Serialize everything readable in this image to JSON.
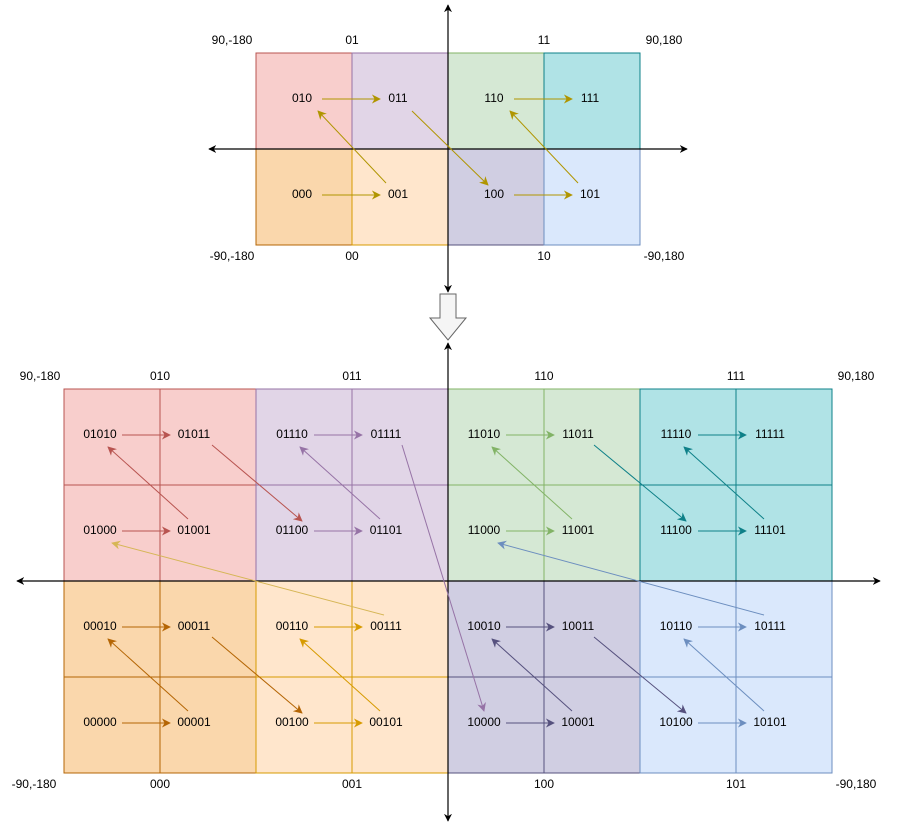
{
  "colors": {
    "red": {
      "fill": "#f8cecc",
      "stroke": "#b85450",
      "arrow": "#b85450"
    },
    "purple": {
      "fill": "#e1d5e7",
      "stroke": "#9673a6",
      "arrow": "#9673a6"
    },
    "green": {
      "fill": "#d5e8d4",
      "stroke": "#82b366",
      "arrow": "#82b366"
    },
    "teal": {
      "fill": "#b0e3e6",
      "stroke": "#0e8088",
      "arrow": "#0e8088"
    },
    "orange": {
      "fill": "#fad7ac",
      "stroke": "#b46504",
      "arrow": "#b46504"
    },
    "peach": {
      "fill": "#ffe6cc",
      "stroke": "#d79b00",
      "arrow": "#d79b00"
    },
    "slate": {
      "fill": "#d0cee2",
      "stroke": "#56517e",
      "arrow": "#56517e"
    },
    "blue": {
      "fill": "#dae8fc",
      "stroke": "#6c8ebf",
      "arrow": "#6c8ebf"
    },
    "gold": "#b09500",
    "crossArrow": "#d6b656"
  },
  "top": {
    "corners": {
      "tl": "90,-180",
      "tr": "90,180",
      "bl": "-90,-180",
      "br": "-90,180"
    },
    "columnLabelsTop": [
      "01",
      "11"
    ],
    "columnLabelsBottom": [
      "00",
      "10"
    ],
    "cells": [
      {
        "code": "010",
        "color": "red"
      },
      {
        "code": "011",
        "color": "purple"
      },
      {
        "code": "110",
        "color": "green"
      },
      {
        "code": "111",
        "color": "teal"
      },
      {
        "code": "000",
        "color": "orange"
      },
      {
        "code": "001",
        "color": "peach"
      },
      {
        "code": "100",
        "color": "slate"
      },
      {
        "code": "101",
        "color": "blue"
      }
    ]
  },
  "bottom": {
    "corners": {
      "tl": "90,-180",
      "tr": "90,180",
      "bl": "-90,-180",
      "br": "-90,180"
    },
    "columnLabelsTop": [
      "010",
      "011",
      "110",
      "111"
    ],
    "columnLabelsBottom": [
      "000",
      "001",
      "100",
      "101"
    ],
    "rows": [
      [
        "01010",
        "01011",
        "01110",
        "01111",
        "11010",
        "11011",
        "11110",
        "11111"
      ],
      [
        "01000",
        "01001",
        "01100",
        "01101",
        "11000",
        "11001",
        "11100",
        "11101"
      ],
      [
        "00010",
        "00011",
        "00110",
        "00111",
        "10010",
        "10011",
        "10110",
        "10111"
      ],
      [
        "00000",
        "00001",
        "00100",
        "00101",
        "10000",
        "10001",
        "10100",
        "10101"
      ]
    ],
    "quadrantColors": [
      [
        "red",
        "purple",
        "green",
        "teal"
      ],
      [
        "orange",
        "peach",
        "slate",
        "blue"
      ]
    ]
  },
  "transitionArrow": "down-arrow"
}
